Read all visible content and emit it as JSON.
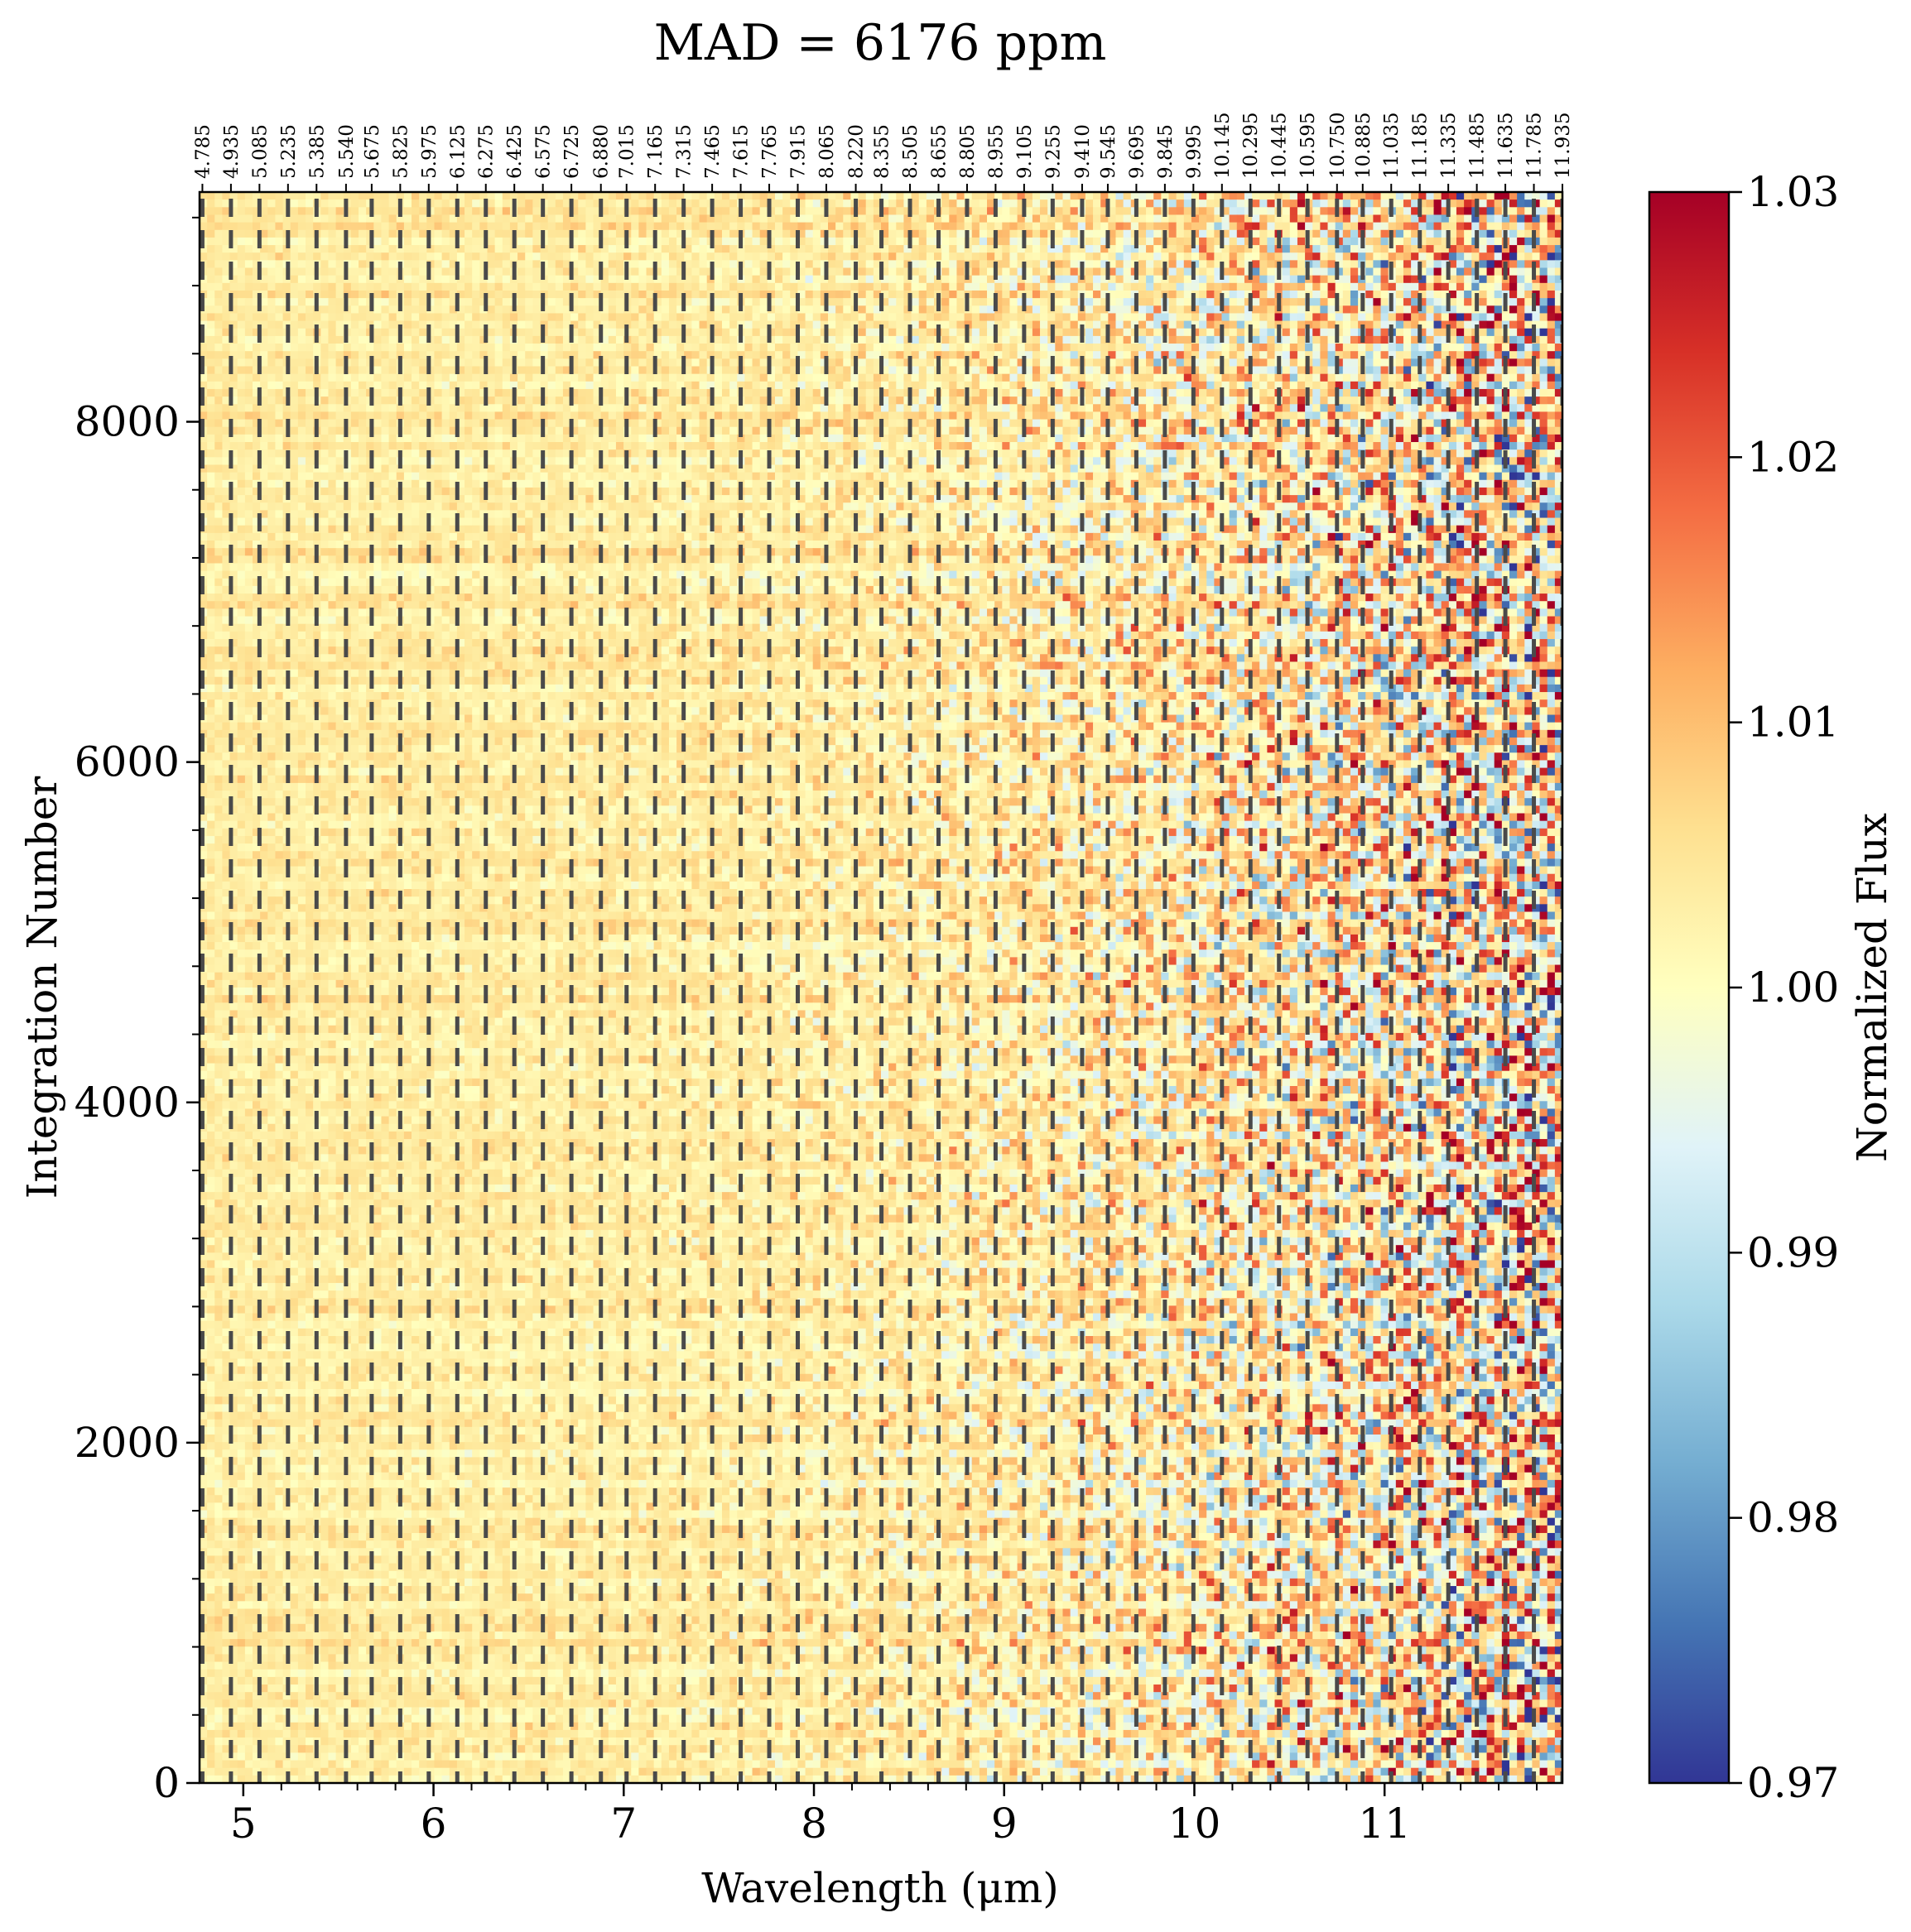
{
  "chart_data": {
    "type": "heatmap",
    "title": "MAD = 6176 ppm",
    "xlabel": "Wavelength (μm)",
    "ylabel": "Integration Number",
    "xlim": [
      4.77,
      11.935
    ],
    "ylim": [
      0,
      9350
    ],
    "x_ticks": [
      5,
      6,
      7,
      8,
      9,
      10,
      11
    ],
    "y_ticks": [
      0,
      2000,
      4000,
      6000,
      8000
    ],
    "x_tick_labels": [
      "5",
      "6",
      "7",
      "8",
      "9",
      "10",
      "11"
    ],
    "y_tick_labels": [
      "0",
      "2000",
      "4000",
      "6000",
      "8000"
    ],
    "top_axis_bin_edges": [
      "4.785",
      "4.935",
      "5.085",
      "5.235",
      "5.385",
      "5.540",
      "5.675",
      "5.825",
      "5.975",
      "6.125",
      "6.275",
      "6.425",
      "6.575",
      "6.725",
      "6.880",
      "7.015",
      "7.165",
      "7.315",
      "7.465",
      "7.615",
      "7.765",
      "7.915",
      "8.065",
      "8.220",
      "8.355",
      "8.505",
      "8.655",
      "8.805",
      "8.955",
      "9.105",
      "9.255",
      "9.410",
      "9.545",
      "9.695",
      "9.845",
      "9.995",
      "10.145",
      "10.295",
      "10.445",
      "10.595",
      "10.750",
      "10.885",
      "11.035",
      "11.185",
      "11.335",
      "11.485",
      "11.635",
      "11.785",
      "11.935"
    ],
    "colorbar": {
      "label": "Normalized Flux",
      "range": [
        0.97,
        1.03
      ],
      "ticks": [
        "0.97",
        "0.98",
        "0.99",
        "1.00",
        "1.01",
        "1.02",
        "1.03"
      ],
      "colormap": "RdYlBu_r"
    },
    "description_of_values": {
      "median_flux": 1.0,
      "noise_increases_with_wavelength": true
    },
    "bin_boundary_lines": {
      "style": "dashed",
      "color": "#4a4a4a"
    }
  }
}
